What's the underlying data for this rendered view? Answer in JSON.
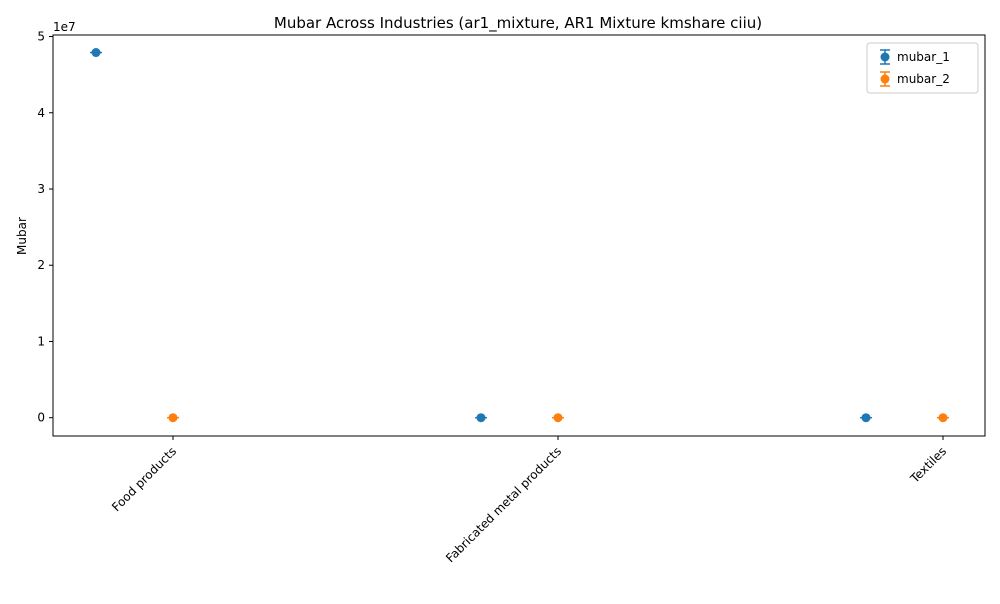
{
  "chart_data": {
    "type": "scatter",
    "title": "Mubar Across Industries (ar1_mixture, AR1 Mixture kmshare ciiu)",
    "xlabel": "",
    "ylabel": "Mubar",
    "y_offset_label": "1e7",
    "categories": [
      "Food products",
      "Fabricated metal products",
      "Textiles"
    ],
    "ylim": [
      -2400000,
      50200000
    ],
    "y_scale_divisor": 10000000,
    "yticks": [
      0,
      10000000,
      20000000,
      30000000,
      40000000,
      50000000
    ],
    "ytick_labels": [
      "0",
      "1",
      "2",
      "3",
      "4",
      "5"
    ],
    "grid": false,
    "legend_position": "top-right",
    "error_bars": true,
    "series": [
      {
        "name": "mubar_1",
        "color": "#1f77b4",
        "values": [
          47900000,
          0,
          0
        ]
      },
      {
        "name": "mubar_2",
        "color": "#ff7f0e",
        "values": [
          0,
          0,
          0
        ]
      }
    ]
  }
}
